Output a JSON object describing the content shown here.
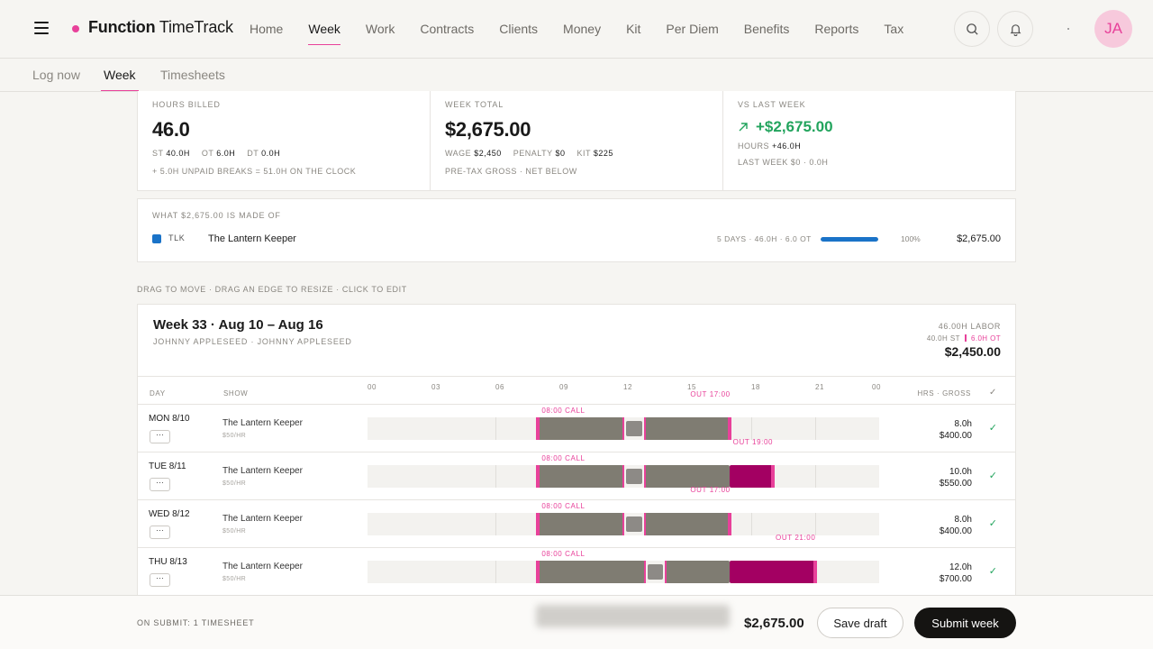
{
  "app": {
    "brand_bold": "Function",
    "brand_light": "TimeTrack",
    "avatar": "JA"
  },
  "nav": {
    "items": [
      "Home",
      "Week",
      "Work",
      "Contracts",
      "Clients",
      "Money",
      "Kit",
      "Per Diem",
      "Benefits",
      "Reports",
      "Tax"
    ],
    "active": "Week"
  },
  "subtabs": {
    "items": [
      "Log now",
      "Week",
      "Timesheets"
    ],
    "active": "Week"
  },
  "stats": {
    "hours_billed": {
      "label": "HOURS BILLED",
      "value": "46.0",
      "st_label": "ST",
      "st": "40.0H",
      "ot_label": "OT",
      "ot": "6.0H",
      "dt_label": "DT",
      "dt": "0.0H",
      "note": "+ 5.0H UNPAID BREAKS = 51.0H ON THE CLOCK"
    },
    "week_total": {
      "label": "WEEK TOTAL",
      "value": "$2,675.00",
      "wage_label": "WAGE",
      "wage": "$2,450",
      "penalty_label": "PENALTY",
      "penalty": "$0",
      "kit_label": "KIT",
      "kit": "$225",
      "note": "PRE-TAX GROSS · NET BELOW"
    },
    "vs_last": {
      "label": "VS LAST WEEK",
      "value": "+$2,675.00",
      "hours_label": "HOURS",
      "hours": "+46.0H",
      "note": "LAST WEEK $0 · 0.0H"
    }
  },
  "made_of": {
    "label": "WHAT $2,675.00 IS MADE OF",
    "code": "TLK",
    "name": "The Lantern Keeper",
    "detail": "5 DAYS · 46.0H · 6.0 OT",
    "share": 1.0,
    "percent": "100%",
    "amount": "$2,675.00",
    "color": "#1a73c8"
  },
  "hint": "DRAG TO MOVE · DRAG AN EDGE TO RESIZE · CLICK TO EDIT",
  "week": {
    "title": "Week 33 · Aug 10 – Aug 16",
    "subtitle": "JOHNNY APPLESEED · JOHNNY APPLESEED",
    "labor": "46.00H LABOR",
    "st": "40.0H ST",
    "ot": "6.0H OT",
    "amount": "$2,450.00",
    "headers": {
      "day": "DAY",
      "show": "SHOW",
      "hrs": "HRS · GROSS",
      "check": "✓"
    },
    "ticks": [
      "00",
      "03",
      "06",
      "09",
      "12",
      "15",
      "18",
      "21",
      "00"
    ],
    "rows": [
      {
        "day": "MON 8/10",
        "more": "···",
        "show": "The Lantern Keeper",
        "rate": "$50/HR",
        "hours": "8.0h",
        "gross": "$400.00",
        "call": "08:00 CALL",
        "out": "OUT 17:00",
        "start": 8,
        "end": 17,
        "break_start": 12,
        "break_end": 13,
        "ot_start": null,
        "checked": "✓"
      },
      {
        "day": "TUE 8/11",
        "more": "···",
        "show": "The Lantern Keeper",
        "rate": "$50/HR",
        "hours": "10.0h",
        "gross": "$550.00",
        "call": "08:00 CALL",
        "out": "OUT 19:00",
        "start": 8,
        "end": 19,
        "break_start": 12,
        "break_end": 13,
        "ot_start": 17,
        "checked": "✓"
      },
      {
        "day": "WED 8/12",
        "more": "···",
        "show": "The Lantern Keeper",
        "rate": "$50/HR",
        "hours": "8.0h",
        "gross": "$400.00",
        "call": "08:00 CALL",
        "out": "OUT 17:00",
        "start": 8,
        "end": 17,
        "break_start": 12,
        "break_end": 13,
        "ot_start": null,
        "checked": "✓"
      },
      {
        "day": "THU 8/13",
        "more": "···",
        "show": "The Lantern Keeper",
        "rate": "$50/HR",
        "hours": "12.0h",
        "gross": "$700.00",
        "call": "08:00 CALL",
        "out": "OUT 21:00",
        "start": 8,
        "end": 21,
        "break_start": 13,
        "break_end": 14,
        "ot_start": 17,
        "checked": "✓"
      }
    ],
    "partial_out": "OUT 17:00"
  },
  "footer": {
    "note": "ON SUBMIT: 1 TIMESHEET",
    "total": "$2,675.00",
    "save": "Save draft",
    "submit": "Submit week"
  },
  "colors": {
    "accent": "#e8419a",
    "regular": "#7f7c72",
    "overtime": "#a30062",
    "positive": "#22a45d"
  }
}
